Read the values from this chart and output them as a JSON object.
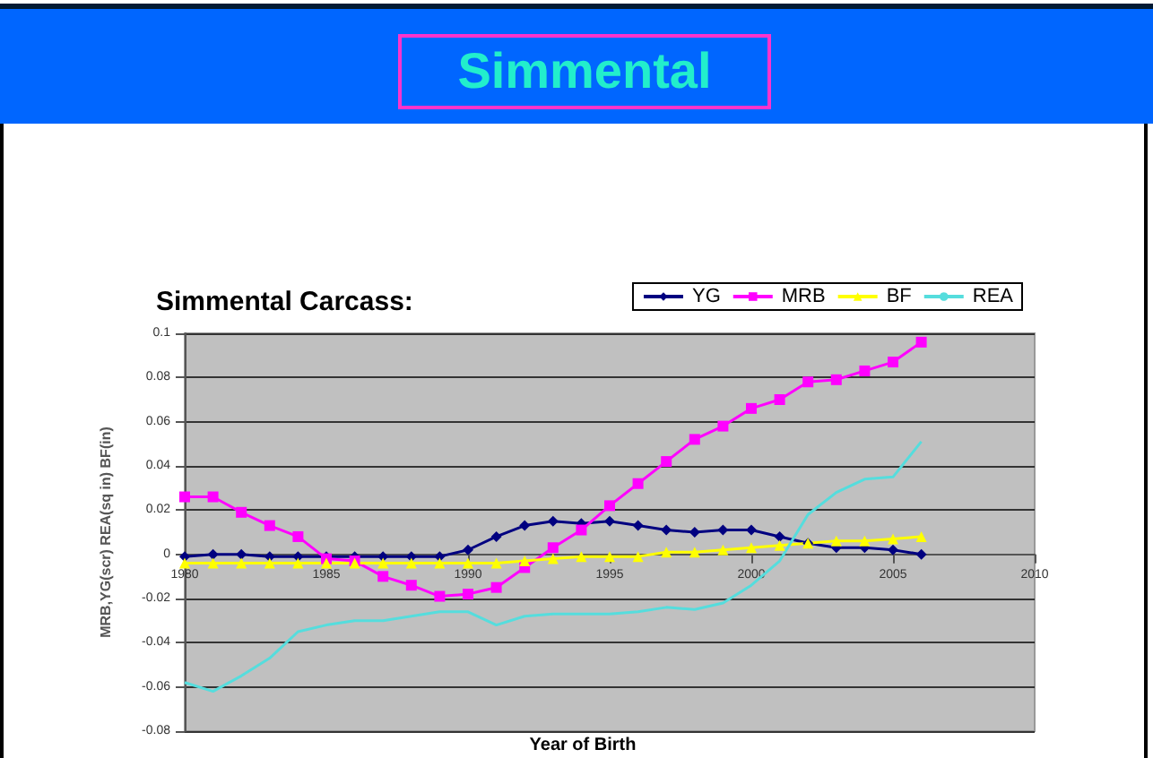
{
  "chart_data": {
    "type": "line",
    "title": "Simmental",
    "subtitle": "Simmental Carcass:",
    "xlabel": "Year of Birth",
    "ylabel": "MRB,YG(scr) REA(sq in) BF(in)",
    "x": [
      1980,
      1981,
      1982,
      1983,
      1984,
      1985,
      1986,
      1987,
      1988,
      1989,
      1990,
      1991,
      1992,
      1993,
      1994,
      1995,
      1996,
      1997,
      1998,
      1999,
      2000,
      2001,
      2002,
      2003,
      2004,
      2005,
      2006
    ],
    "series": [
      {
        "name": "YG",
        "color": "#000080",
        "marker": "diamond",
        "values": [
          -0.001,
          0,
          0,
          -0.001,
          -0.001,
          -0.001,
          -0.001,
          -0.001,
          -0.001,
          -0.001,
          0.002,
          0.008,
          0.013,
          0.015,
          0.014,
          0.015,
          0.013,
          0.011,
          0.01,
          0.011,
          0.011,
          0.008,
          0.005,
          0.003,
          0.003,
          0.002,
          0
        ]
      },
      {
        "name": "MRB",
        "color": "#ff00ff",
        "marker": "square",
        "values": [
          0.026,
          0.026,
          0.019,
          0.013,
          0.008,
          -0.002,
          -0.003,
          -0.01,
          -0.014,
          -0.019,
          -0.018,
          -0.015,
          -0.006,
          0.003,
          0.011,
          0.022,
          0.032,
          0.042,
          0.052,
          0.058,
          0.066,
          0.07,
          0.078,
          0.079,
          0.083,
          0.087,
          0.096
        ]
      },
      {
        "name": "BF",
        "color": "#ffff00",
        "marker": "triangle",
        "values": [
          -0.004,
          -0.004,
          -0.004,
          -0.004,
          -0.004,
          -0.004,
          -0.004,
          -0.004,
          -0.004,
          -0.004,
          -0.004,
          -0.004,
          -0.003,
          -0.002,
          -0.001,
          -0.001,
          -0.001,
          0.001,
          0.001,
          0.002,
          0.003,
          0.004,
          0.005,
          0.006,
          0.006,
          0.007,
          0.008
        ]
      },
      {
        "name": "REA",
        "color": "#55dddd",
        "marker": "none",
        "values": [
          -0.058,
          -0.062,
          -0.055,
          -0.047,
          -0.035,
          -0.032,
          -0.03,
          -0.03,
          -0.028,
          -0.026,
          -0.026,
          -0.032,
          -0.028,
          -0.027,
          -0.027,
          -0.027,
          -0.026,
          -0.024,
          -0.025,
          -0.022,
          -0.014,
          -0.003,
          0.018,
          0.028,
          0.034,
          0.035,
          0.051
        ]
      }
    ],
    "xlim": [
      1980,
      2010
    ],
    "xticks": [
      1980,
      1985,
      1990,
      1995,
      2000,
      2005,
      2010
    ],
    "ylim": [
      -0.08,
      0.1
    ],
    "yticks": [
      -0.08,
      -0.06,
      -0.04,
      -0.02,
      0,
      0.02,
      0.04,
      0.06,
      0.08,
      0.1
    ],
    "grid": "y",
    "legend": "top right",
    "line_style": "solid"
  }
}
